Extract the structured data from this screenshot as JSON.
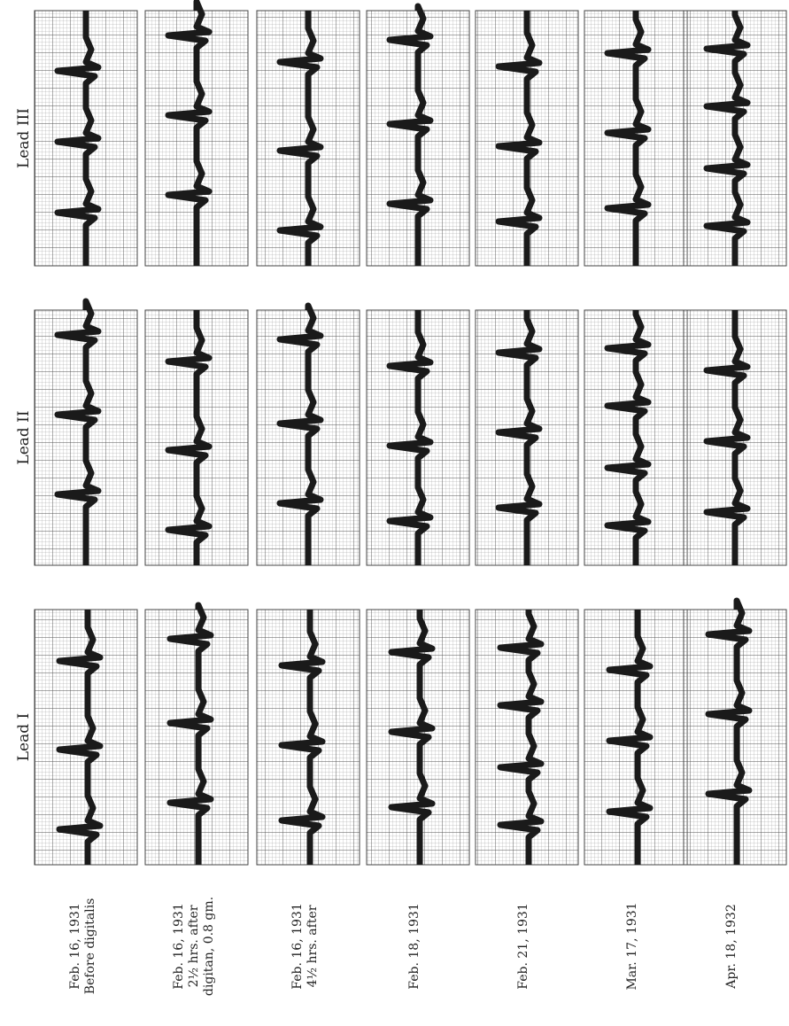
{
  "leads": [
    {
      "label": "Lead III"
    },
    {
      "label": "Lead II"
    },
    {
      "label": "Lead I"
    }
  ],
  "recordings": [
    {
      "lines": [
        "Feb. 16, 1931",
        "Before digitalis"
      ]
    },
    {
      "lines": [
        "Feb. 16, 1931",
        "2½ hrs. after",
        "digitan, 0.8 gm."
      ]
    },
    {
      "lines": [
        "Feb. 16, 1931",
        "4½ hrs. after"
      ]
    },
    {
      "lines": [
        "Feb. 18, 1931"
      ]
    },
    {
      "lines": [
        "Feb. 21, 1931"
      ]
    },
    {
      "lines": [
        "Mar. 17, 1931"
      ]
    },
    {
      "lines": [
        "Apr. 18, 1932"
      ]
    }
  ]
}
